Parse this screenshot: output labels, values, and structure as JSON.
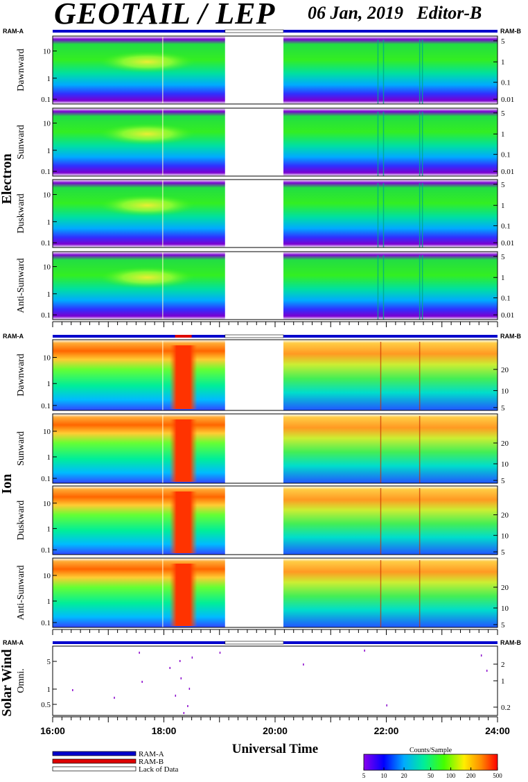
{
  "header": {
    "title": "GEOTAIL / LEP",
    "date": "06 Jan, 2019",
    "editor": "Editor-B"
  },
  "chart_data": {
    "type": "heatmap",
    "xlabel": "Universal Time",
    "x_ticks": [
      "16:00",
      "18:00",
      "20:00",
      "22:00",
      "24:00"
    ],
    "x_range_hours": [
      16,
      24
    ],
    "data_gap_hours": [
      19.1,
      20.15
    ],
    "bar_labels": {
      "left": "RAM-A",
      "right": "RAM-B"
    },
    "groups": [
      {
        "name": "Electron",
        "panels": [
          {
            "label": "Dawnward",
            "left_ticks": [
              "10",
              "1",
              "0.1"
            ],
            "right_ticks": [
              "5",
              "1",
              "0.1",
              "0.01"
            ]
          },
          {
            "label": "Sunward",
            "left_ticks": [
              "10",
              "1",
              "0.1"
            ],
            "right_ticks": [
              "5",
              "1",
              "0.1",
              "0.01"
            ]
          },
          {
            "label": "Duskward",
            "left_ticks": [
              "10",
              "1",
              "0.1"
            ],
            "right_ticks": [
              "5",
              "1",
              "0.1",
              "0.01"
            ]
          },
          {
            "label": "Anti-Sunward",
            "left_ticks": [
              "10",
              "1",
              "0.1"
            ],
            "right_ticks": [
              "5",
              "1",
              "0.1",
              "0.01"
            ]
          }
        ]
      },
      {
        "name": "Ion",
        "panels": [
          {
            "label": "Dawnward",
            "left_ticks": [
              "10",
              "1",
              "0.1"
            ],
            "right_ticks": [
              "20",
              "10",
              "5"
            ]
          },
          {
            "label": "Sunward",
            "left_ticks": [
              "10",
              "1",
              "0.1"
            ],
            "right_ticks": [
              "20",
              "10",
              "5"
            ]
          },
          {
            "label": "Duskward",
            "left_ticks": [
              "10",
              "1",
              "0.1"
            ],
            "right_ticks": [
              "20",
              "10",
              "5"
            ]
          },
          {
            "label": "Anti-Sunward",
            "left_ticks": [
              "10",
              "1",
              "0.1"
            ],
            "right_ticks": [
              "20",
              "10",
              "5"
            ]
          }
        ]
      },
      {
        "name": "Solar Wind",
        "panels": [
          {
            "label": "Omni.",
            "left_ticks": [
              "5",
              "1",
              "0.5"
            ],
            "right_ticks": [
              "2",
              "1",
              "0.2"
            ]
          }
        ]
      }
    ]
  },
  "legend": {
    "items": [
      {
        "label": "RAM-A",
        "color": "#0000cc"
      },
      {
        "label": "RAM-B",
        "color": "#dd0000"
      },
      {
        "label": "Lack of Data",
        "color": "#ffffff"
      }
    ]
  },
  "colorbar": {
    "title": "Counts/Sample",
    "ticks": [
      "5",
      "10",
      "20",
      "50",
      "100",
      "200",
      "500"
    ]
  }
}
